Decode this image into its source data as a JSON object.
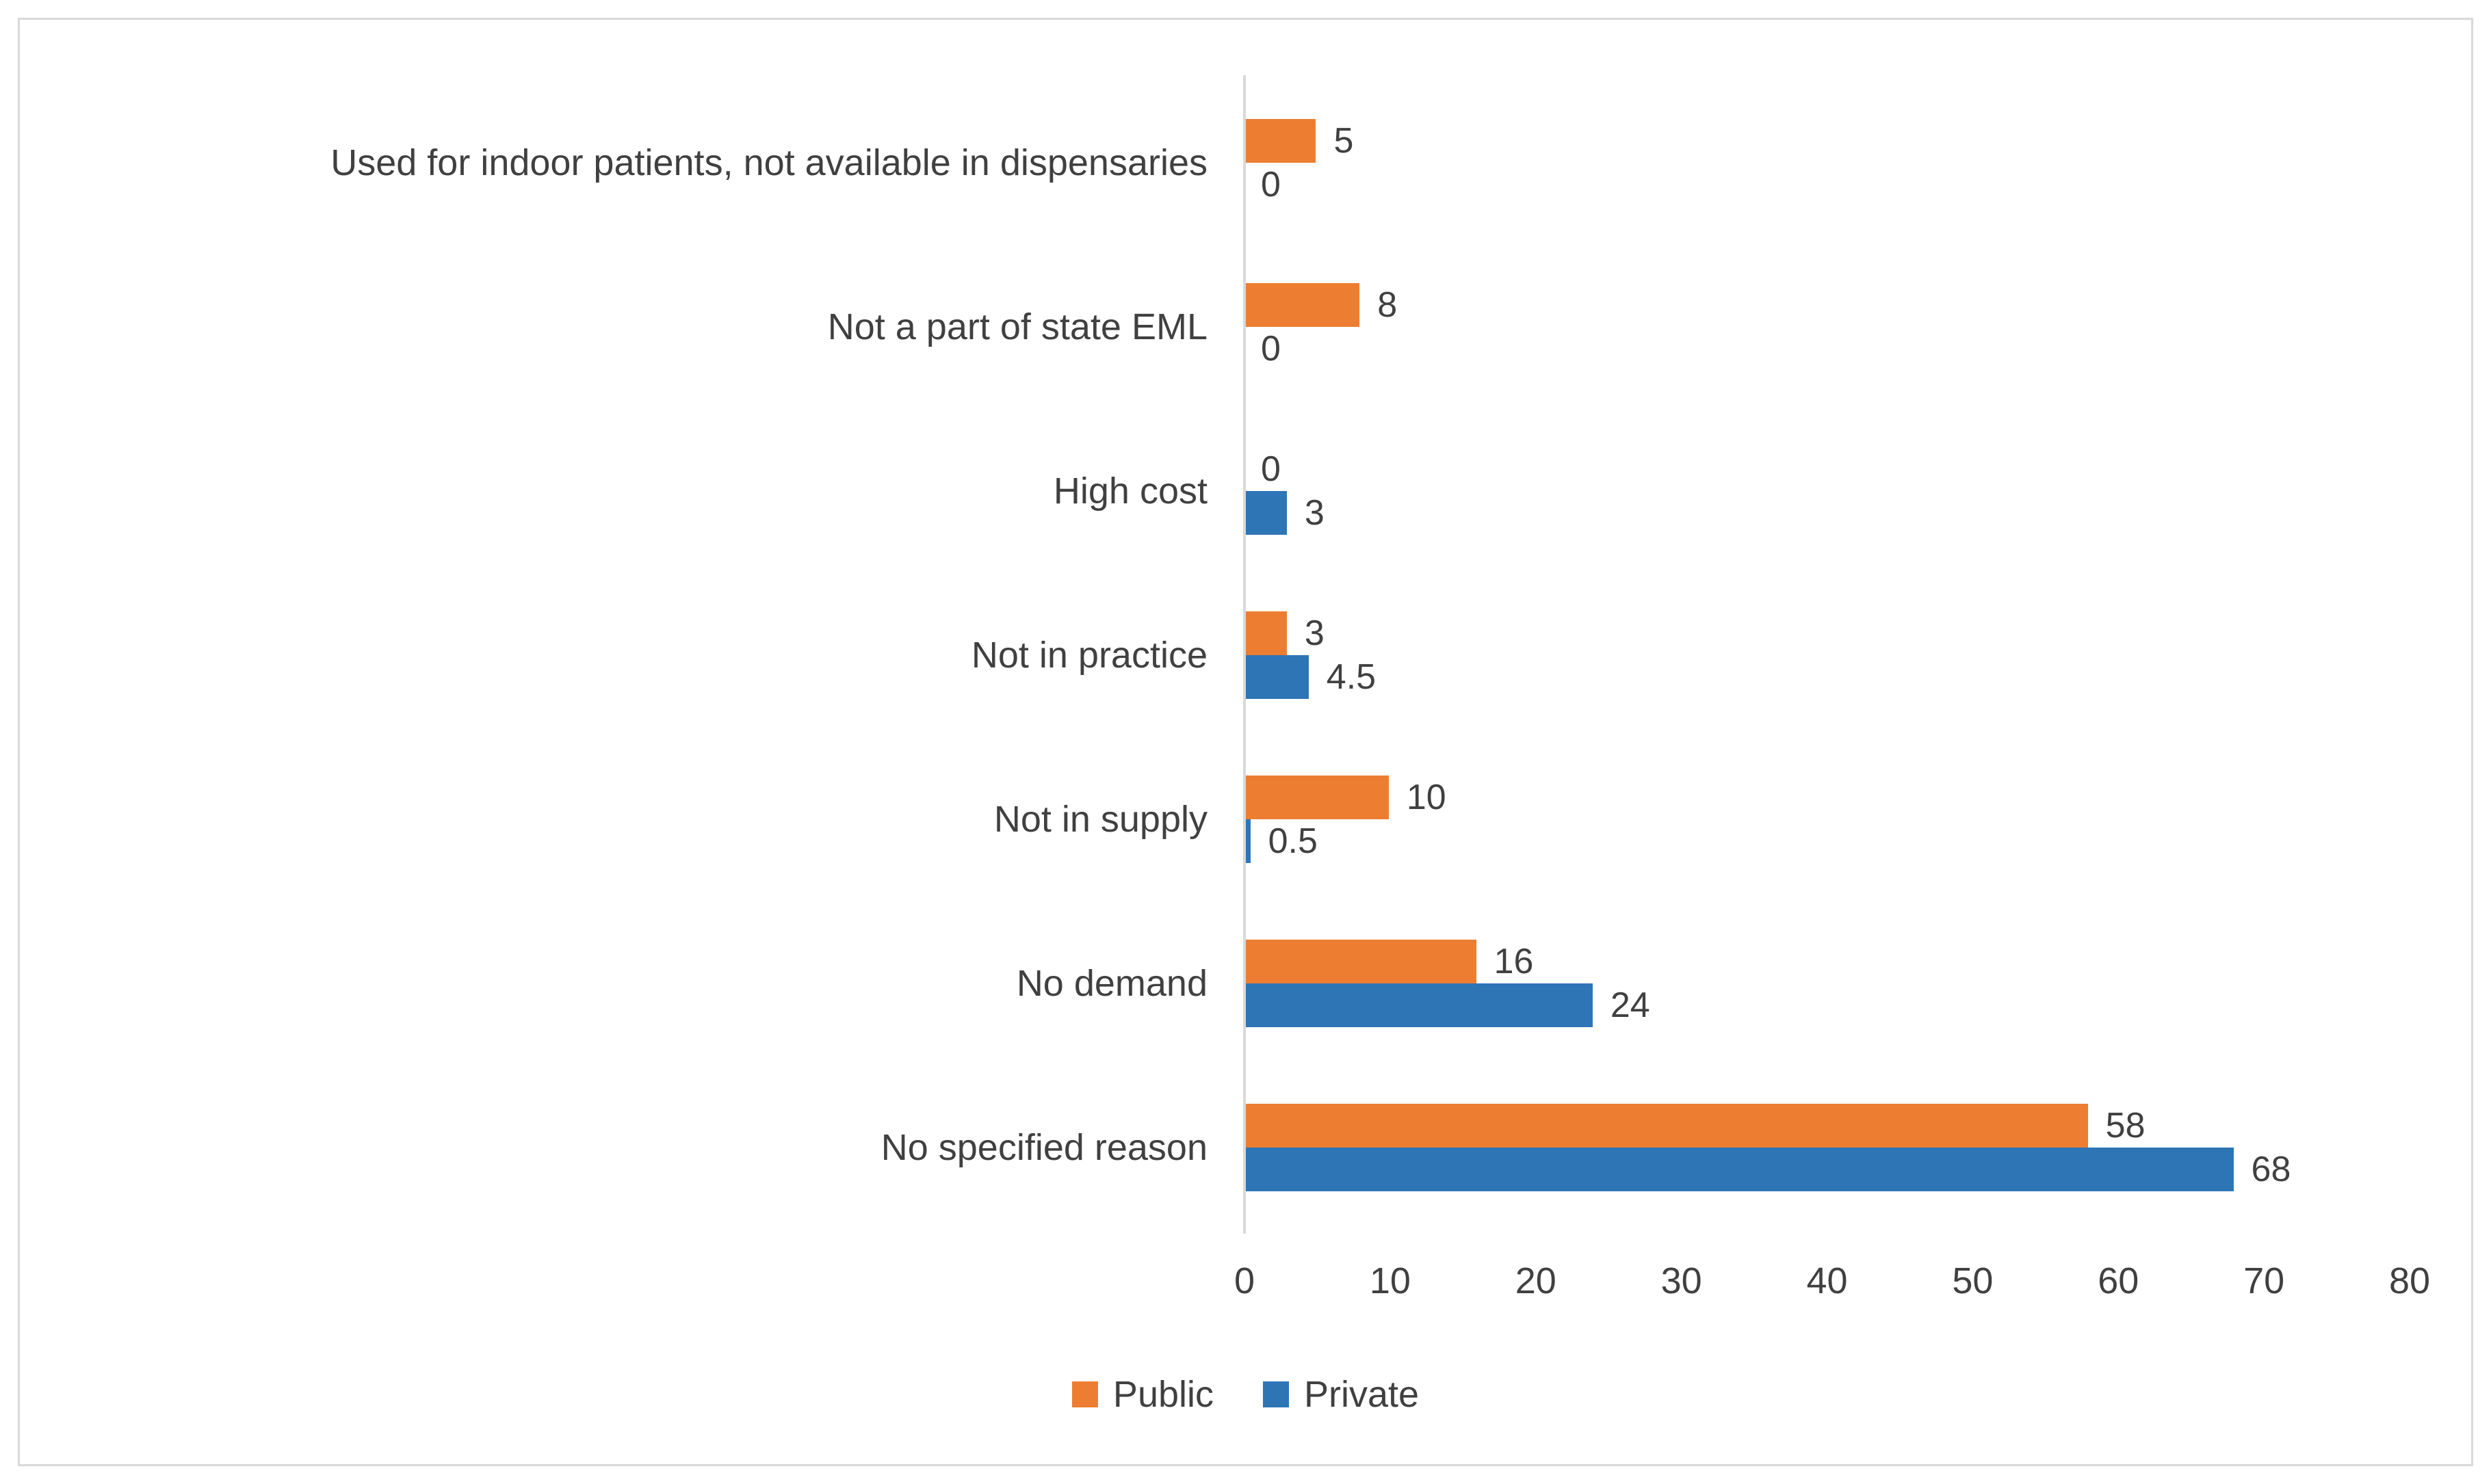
{
  "figure": {
    "background": "#ffffff",
    "border_color": "#d9d9d9",
    "text_color": "#404040"
  },
  "chart_data": {
    "type": "bar",
    "orientation": "horizontal",
    "title": "",
    "xlabel": "",
    "ylabel": "",
    "grid": false,
    "xlim": [
      0,
      80
    ],
    "xticks": [
      "0",
      "10",
      "20",
      "30",
      "40",
      "50",
      "60",
      "70",
      "80"
    ],
    "categories": [
      "Used for indoor patients, not available in dispensaries",
      "Not a part of state EML",
      "High cost",
      "Not in practice",
      "Not in supply",
      "No demand",
      "No specified reason"
    ],
    "series": [
      {
        "name": "Public",
        "color": "#ED7D31",
        "values": [
          5,
          8,
          0,
          3,
          10,
          16,
          58
        ],
        "labels": [
          "5",
          "8",
          "0",
          "3",
          "10",
          "16",
          "58"
        ]
      },
      {
        "name": "Private",
        "color": "#2E75B6",
        "values": [
          0,
          0,
          3,
          4.5,
          0.5,
          24,
          68
        ],
        "labels": [
          "0",
          "0",
          "3",
          "4.5",
          "0.5",
          "24",
          "68"
        ]
      }
    ],
    "legend": {
      "position": "bottom",
      "items": [
        {
          "label": "Public",
          "color": "#ED7D31"
        },
        {
          "label": "Private",
          "color": "#2E75B6"
        }
      ]
    }
  }
}
